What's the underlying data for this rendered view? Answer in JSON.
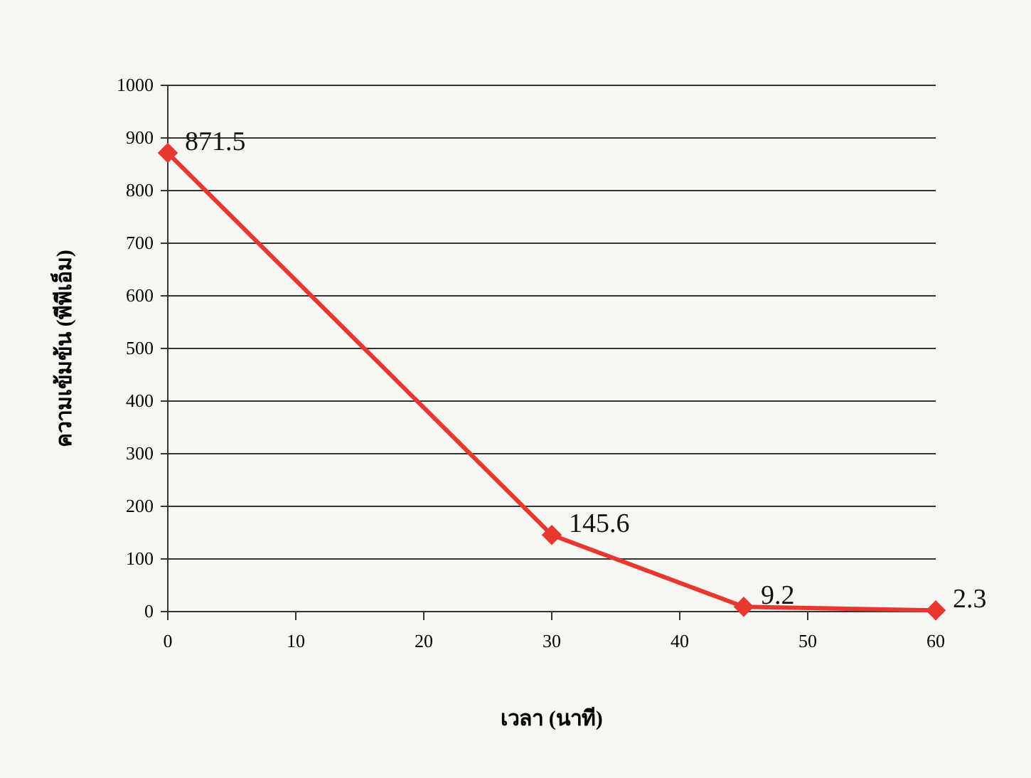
{
  "chart_data": {
    "type": "line",
    "xlabel": "เวลา (นาที)",
    "ylabel": "ความเข้มข้น (พีพีเอ็ม)",
    "x": [
      0,
      30,
      45,
      60
    ],
    "series": [
      {
        "color": "#e8372f",
        "values": [
          871.5,
          145.6,
          9.2,
          2.3
        ]
      }
    ],
    "xlim": [
      0,
      60
    ],
    "xticks": [
      0,
      10,
      20,
      30,
      40,
      50,
      60
    ],
    "ylim": [
      0,
      1000
    ],
    "yticks": [
      0,
      100,
      200,
      300,
      400,
      500,
      600,
      700,
      800,
      900,
      1000
    ],
    "grid": "y",
    "marker": "diamond",
    "data_labels": true
  }
}
